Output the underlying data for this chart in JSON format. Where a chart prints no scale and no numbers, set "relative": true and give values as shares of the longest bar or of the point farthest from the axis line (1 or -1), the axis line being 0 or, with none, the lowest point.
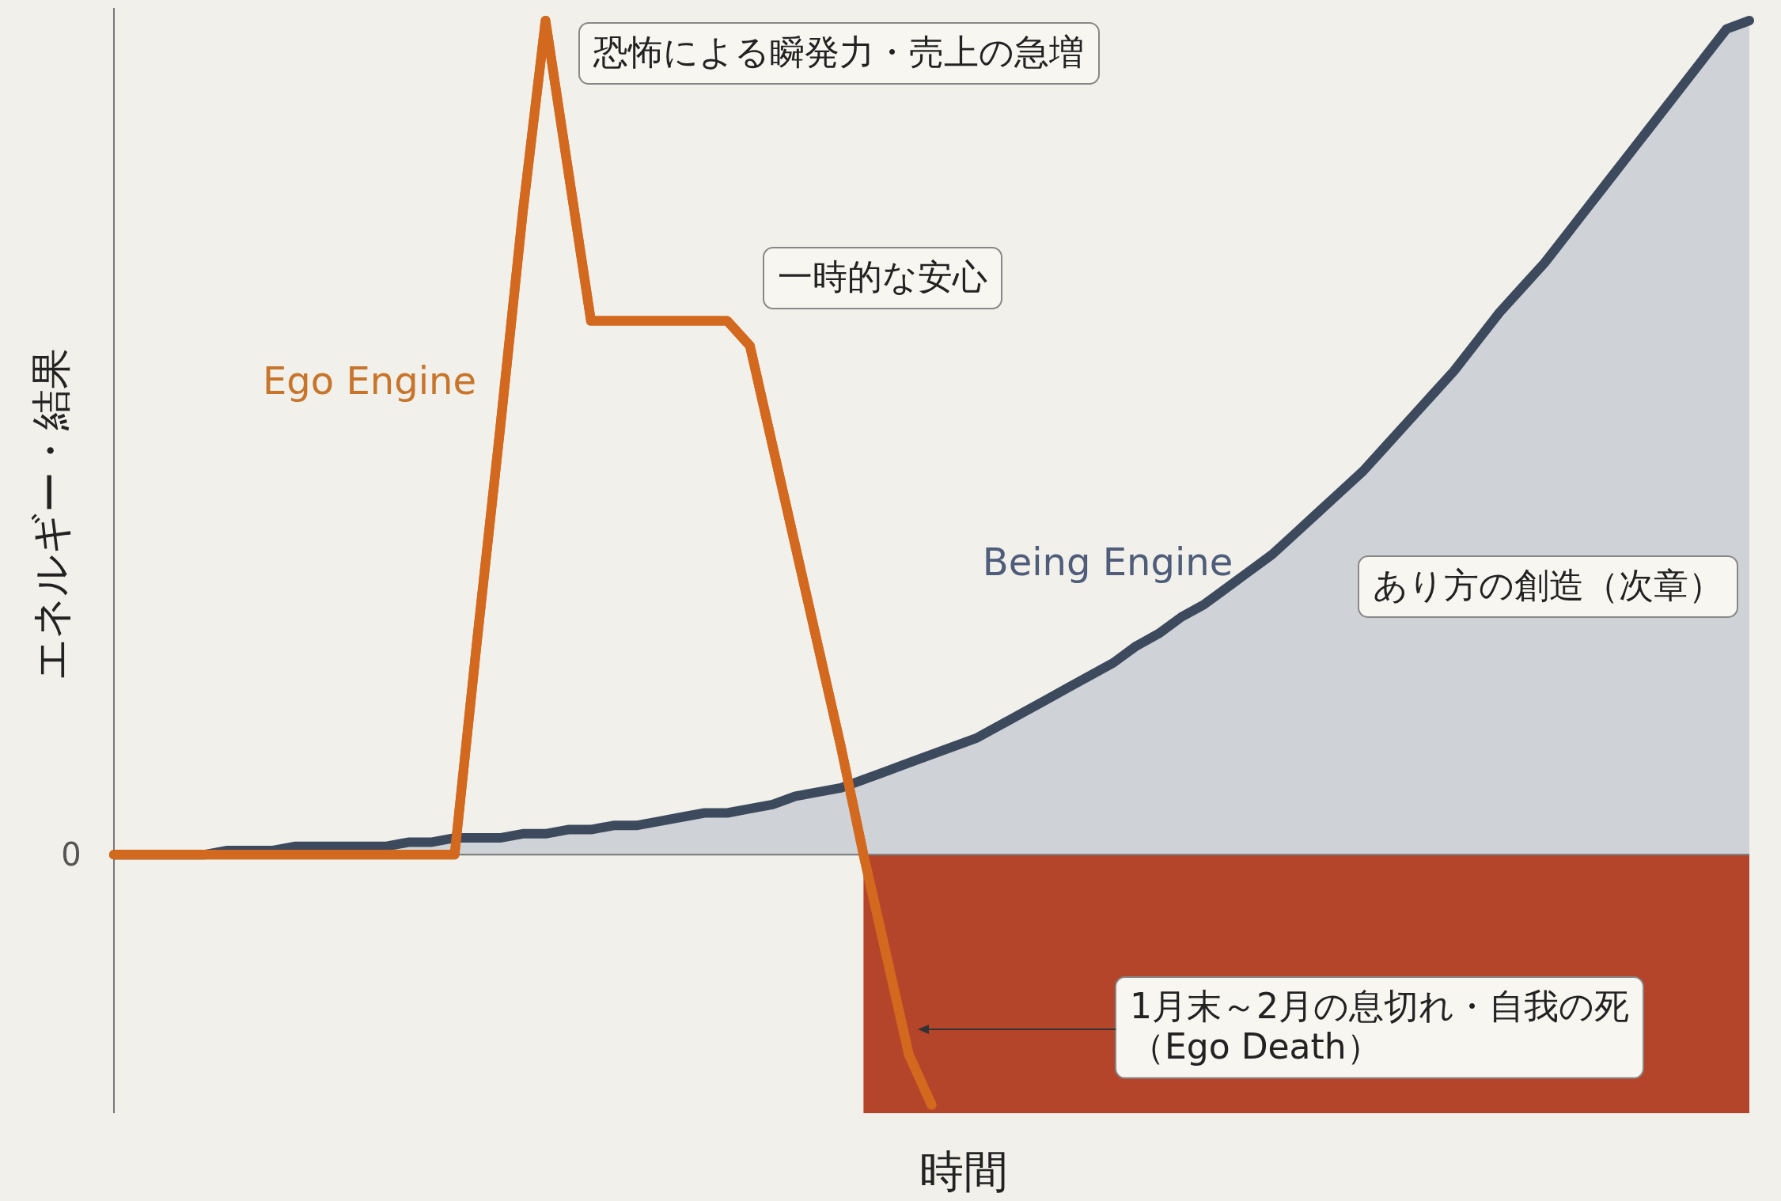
{
  "chart_data": {
    "type": "line",
    "relative": true,
    "xlabel": "時間",
    "ylabel": "エネルギー・結果",
    "categories": [
      null,
      null,
      null,
      null,
      null,
      null,
      null,
      null,
      null,
      null,
      null,
      null,
      null,
      null,
      null,
      null,
      null,
      null,
      null,
      null,
      null,
      null,
      null,
      null,
      null,
      null,
      null,
      null,
      null,
      null,
      null,
      null,
      null,
      null,
      null,
      null,
      null,
      null,
      null,
      null,
      null,
      null,
      null,
      null,
      null,
      null,
      null,
      null,
      null,
      null,
      null,
      null,
      null,
      null,
      null,
      null,
      null,
      null,
      null,
      null,
      null,
      null,
      null,
      null,
      null,
      null,
      null,
      null,
      null,
      null,
      null,
      null,
      null
    ],
    "series": [
      {
        "name": "Ego Engine",
        "color": "#d2691e",
        "values": [
          0,
          0,
          0,
          0,
          0,
          0,
          0,
          0,
          0,
          0,
          0,
          0,
          0,
          0,
          0,
          0,
          0.26,
          0.51,
          0.77,
          1,
          0.82,
          0.64,
          0.64,
          0.64,
          0.64,
          0.64,
          0.64,
          0.64,
          0.61,
          0.49,
          0.37,
          0.25,
          0.13,
          0,
          -0.12,
          -0.24,
          -0.3,
          null,
          null,
          null,
          null,
          null,
          null,
          null,
          null,
          null,
          null,
          null,
          null,
          null,
          null,
          null,
          null,
          null,
          null,
          null,
          null,
          null,
          null,
          null,
          null,
          null,
          null,
          null,
          null,
          null,
          null,
          null,
          null,
          null,
          null,
          null,
          null
        ]
      },
      {
        "name": "Being Engine",
        "type": "area",
        "color": "#3d4a5e",
        "values": [
          0,
          0,
          0,
          0,
          0,
          0.005,
          0.005,
          0.005,
          0.01,
          0.01,
          0.01,
          0.01,
          0.01,
          0.015,
          0.015,
          0.02,
          0.02,
          0.02,
          0.025,
          0.025,
          0.03,
          0.03,
          0.035,
          0.035,
          0.04,
          0.045,
          0.05,
          0.05,
          0.055,
          0.06,
          0.07,
          0.075,
          0.08,
          0.09,
          0.1,
          0.11,
          0.12,
          0.13,
          0.14,
          0.155,
          0.17,
          0.185,
          0.2,
          0.215,
          0.23,
          0.25,
          0.265,
          0.285,
          0.3,
          0.32,
          0.34,
          0.36,
          0.385,
          0.41,
          0.435,
          0.46,
          0.49,
          0.52,
          0.55,
          0.58,
          0.615,
          0.65,
          0.68,
          0.71,
          0.745,
          0.78,
          0.815,
          0.85,
          0.885,
          0.92,
          0.955,
          0.99,
          1
        ]
      },
      {
        "type": "area",
        "color": "#b5452a",
        "values": [
          null,
          null,
          null,
          null,
          null,
          null,
          null,
          null,
          null,
          null,
          null,
          null,
          null,
          null,
          null,
          null,
          null,
          null,
          null,
          null,
          null,
          null,
          null,
          null,
          null,
          null,
          null,
          null,
          null,
          null,
          null,
          null,
          null,
          -0.31,
          -0.31,
          -0.31,
          -0.31,
          -0.31,
          -0.31,
          -0.31,
          -0.31,
          -0.31,
          -0.31,
          -0.31,
          -0.31,
          -0.31,
          -0.31,
          -0.31,
          -0.31,
          -0.31,
          -0.31,
          -0.31,
          -0.31,
          -0.31,
          -0.31,
          -0.31,
          -0.31,
          -0.31,
          -0.31,
          -0.31,
          -0.31,
          -0.31,
          -0.31,
          -0.31,
          -0.31,
          -0.31,
          -0.31,
          -0.31,
          -0.31,
          -0.31,
          -0.31,
          -0.31,
          -0.31
        ]
      }
    ],
    "ref_lines": [
      {
        "axis": "y",
        "value": 0,
        "label": "0"
      }
    ],
    "annotations": [
      "恐怖による瞬発力・売上の急増",
      "一時的な安心",
      "あり方の創造（次章）",
      "1月末～2月の息切れ・自我の死（Ego Death）"
    ]
  }
}
